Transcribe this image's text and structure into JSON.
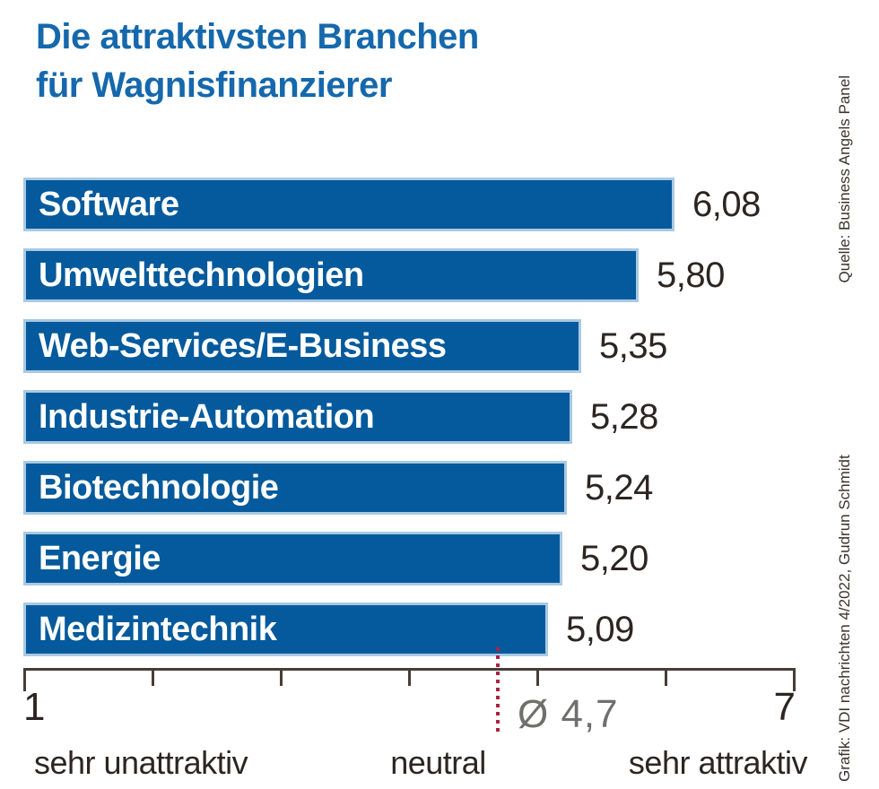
{
  "title": {
    "line1": "Die attraktivsten Branchen",
    "line2": "für Wagnisfinanzierer"
  },
  "chart_data": {
    "type": "bar",
    "orientation": "horizontal",
    "title": "Die attraktivsten Branchen für Wagnisfinanzierer",
    "categories": [
      "Software",
      "Umwelttechnologien",
      "Web-Services/E-Business",
      "Industrie-Automation",
      "Biotechnologie",
      "Energie",
      "Medizintechnik"
    ],
    "values": [
      6.08,
      5.8,
      5.35,
      5.28,
      5.24,
      5.2,
      5.09
    ],
    "value_labels": [
      "6,08",
      "5,80",
      "5,35",
      "5,28",
      "5,24",
      "5,20",
      "5,09"
    ],
    "axis": {
      "min": 1,
      "max": 7,
      "min_label": "1",
      "max_label": "7",
      "tick_values": [
        1,
        2,
        3,
        4,
        5,
        6,
        7
      ]
    },
    "average": {
      "value": 4.7,
      "label": "Ø 4,7"
    },
    "scale_labels": {
      "left": "sehr unattraktiv",
      "center": "neutral",
      "right": "sehr attraktiv"
    },
    "grid": false,
    "legend": null
  },
  "credits": {
    "grafik": "Grafik: VDI nachrichten 4/2022, Gudrun Schmidt",
    "quelle": "Quelle: Business Angels Panel"
  },
  "colors": {
    "bar_fill": "#045a9c",
    "bar_edge": "#a9c9e2",
    "title_color": "#1568ac",
    "text_dark": "#2d2521",
    "axis_color": "#473d37",
    "avg_line_color": "#ad2342",
    "avg_label_color": "#6f6f6d",
    "credits_color": "#3a332c"
  }
}
